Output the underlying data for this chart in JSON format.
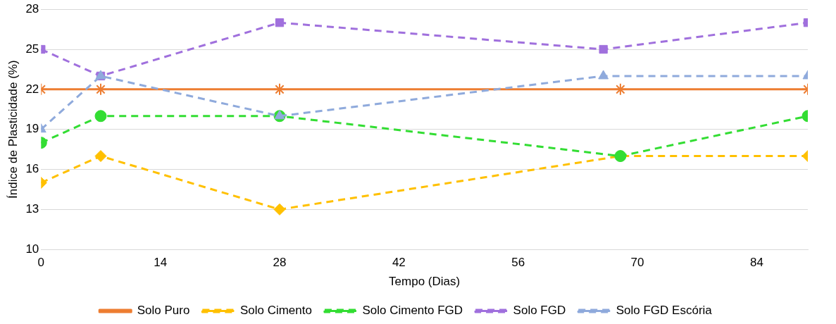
{
  "chart_data": {
    "type": "line",
    "xlabel": "Tempo (Dias)",
    "ylabel": "Índice de Plasticidade (%)",
    "xlim": [
      0,
      90
    ],
    "xticks": [
      0,
      14,
      28,
      42,
      56,
      70,
      84
    ],
    "ylim": [
      10,
      28
    ],
    "yticks": [
      10,
      13,
      16,
      19,
      22,
      25,
      28
    ],
    "grid": "y",
    "legend": "bottom",
    "series": [
      {
        "name": "Solo Puro",
        "color": "#ed7d31",
        "marker": "cross",
        "line_style": "solid",
        "x": [
          0,
          7,
          28,
          68,
          90
        ],
        "values": [
          22,
          22,
          22,
          22,
          22
        ]
      },
      {
        "name": "Solo Cimento",
        "color": "#ffc000",
        "marker": "diamond",
        "line_style": "dashed",
        "x": [
          0,
          7,
          28,
          68,
          90
        ],
        "values": [
          15,
          17,
          13,
          17,
          17
        ]
      },
      {
        "name": "Solo Cimento FGD",
        "color": "#33dd33",
        "marker": "circle",
        "line_style": "dashed",
        "x": [
          0,
          7,
          28,
          68,
          90
        ],
        "values": [
          18,
          20,
          20,
          17,
          20
        ]
      },
      {
        "name": "Solo FGD",
        "color": "#a070dd",
        "marker": "square",
        "line_style": "dashed",
        "x": [
          0,
          7,
          28,
          66,
          90
        ],
        "values": [
          25,
          23,
          27,
          25,
          27
        ]
      },
      {
        "name": "Solo FGD Escória",
        "color": "#8faadc",
        "marker": "triangle",
        "line_style": "dashed",
        "x": [
          0,
          7,
          28,
          66,
          90
        ],
        "values": [
          19,
          23,
          20,
          23,
          23
        ]
      }
    ]
  }
}
